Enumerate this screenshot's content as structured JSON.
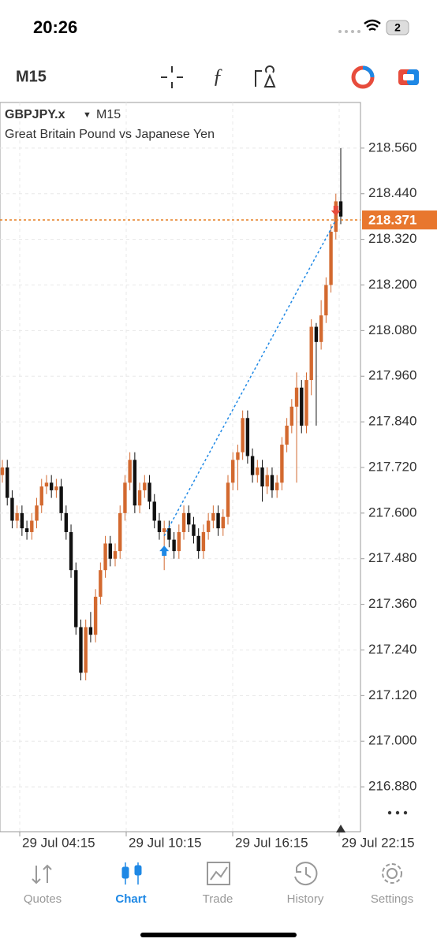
{
  "status_bar": {
    "time": "20:26",
    "battery": "2"
  },
  "toolbar": {
    "timeframe": "M15"
  },
  "chart_data": {
    "type": "candlestick",
    "symbol": "GBPJPY.x",
    "timeframe": "M15",
    "subtitle": "Great Britain Pound vs Japanese Yen",
    "up_color": "#d3692f",
    "down_color": "#111111",
    "open": [
      217.7,
      217.72,
      217.64,
      217.58,
      217.6,
      217.56,
      217.55,
      217.58,
      217.62,
      217.67,
      217.68,
      217.66,
      217.67,
      217.6,
      217.55,
      217.45,
      217.3,
      217.18,
      217.3,
      217.28,
      217.38,
      217.45,
      217.52,
      217.48,
      217.5,
      217.6,
      217.68,
      217.74,
      217.62,
      217.66,
      217.68,
      217.63,
      217.58,
      217.55,
      217.56,
      217.53,
      217.5,
      217.55,
      217.6,
      217.57,
      217.54,
      217.5,
      217.55,
      217.58,
      217.6,
      217.56,
      217.59,
      217.68,
      217.74,
      217.76,
      217.85,
      217.75,
      217.7,
      217.72,
      217.67,
      217.7,
      217.66,
      217.68,
      217.78,
      217.83,
      217.88,
      217.93,
      217.83,
      217.95,
      218.09,
      218.05,
      218.12,
      218.2,
      218.34,
      218.42
    ],
    "high": [
      217.74,
      217.74,
      217.66,
      217.62,
      217.62,
      217.58,
      217.6,
      217.64,
      217.69,
      217.7,
      217.7,
      217.69,
      217.69,
      217.62,
      217.57,
      217.47,
      217.32,
      217.32,
      217.34,
      217.4,
      217.47,
      217.54,
      217.54,
      217.52,
      217.62,
      217.7,
      217.76,
      217.76,
      217.68,
      217.7,
      217.7,
      217.65,
      217.6,
      217.58,
      217.58,
      217.55,
      217.57,
      217.62,
      217.62,
      217.59,
      217.56,
      217.57,
      217.6,
      217.62,
      217.62,
      217.61,
      217.7,
      217.76,
      217.78,
      217.87,
      217.87,
      217.77,
      217.74,
      217.74,
      217.72,
      217.72,
      217.7,
      217.8,
      217.85,
      217.9,
      217.97,
      217.95,
      217.97,
      218.11,
      218.1,
      218.16,
      218.22,
      218.36,
      218.44,
      218.56
    ],
    "low": [
      217.68,
      217.62,
      217.56,
      217.56,
      217.54,
      217.53,
      217.53,
      217.56,
      217.6,
      217.65,
      217.64,
      217.64,
      217.58,
      217.53,
      217.43,
      217.28,
      217.16,
      217.16,
      217.26,
      217.26,
      217.36,
      217.43,
      217.46,
      217.46,
      217.48,
      217.58,
      217.66,
      217.6,
      217.6,
      217.64,
      217.61,
      217.56,
      217.53,
      217.45,
      217.51,
      217.48,
      217.48,
      217.53,
      217.55,
      217.52,
      217.48,
      217.48,
      217.53,
      217.56,
      217.54,
      217.54,
      217.57,
      217.66,
      217.66,
      217.74,
      217.73,
      217.68,
      217.68,
      217.63,
      217.65,
      217.64,
      217.64,
      217.66,
      217.76,
      217.81,
      217.68,
      217.81,
      217.81,
      217.91,
      217.83,
      218.03,
      218.1,
      218.18,
      218.32,
      218.36
    ],
    "close": [
      217.72,
      217.64,
      217.58,
      217.6,
      217.56,
      217.55,
      217.58,
      217.62,
      217.67,
      217.68,
      217.66,
      217.67,
      217.6,
      217.55,
      217.45,
      217.3,
      217.18,
      217.3,
      217.28,
      217.38,
      217.45,
      217.52,
      217.48,
      217.5,
      217.6,
      217.68,
      217.74,
      217.62,
      217.66,
      217.68,
      217.63,
      217.58,
      217.55,
      217.56,
      217.53,
      217.5,
      217.55,
      217.6,
      217.57,
      217.54,
      217.5,
      217.55,
      217.58,
      217.6,
      217.56,
      217.59,
      217.68,
      217.74,
      217.76,
      217.85,
      217.75,
      217.7,
      217.72,
      217.67,
      217.7,
      217.66,
      217.68,
      217.78,
      217.83,
      217.88,
      217.93,
      217.83,
      217.95,
      218.09,
      218.05,
      218.12,
      218.2,
      218.34,
      218.42,
      218.38
    ],
    "ylim": [
      216.762,
      218.68
    ],
    "yticks": [
      {
        "value": 218.56,
        "label": "218.560"
      },
      {
        "value": 218.44,
        "label": "218.440"
      },
      {
        "value": 218.32,
        "label": "218.320"
      },
      {
        "value": 218.2,
        "label": "218.200"
      },
      {
        "value": 218.08,
        "label": "218.080"
      },
      {
        "value": 217.96,
        "label": "217.960"
      },
      {
        "value": 217.84,
        "label": "217.840"
      },
      {
        "value": 217.72,
        "label": "217.720"
      },
      {
        "value": 217.6,
        "label": "217.600"
      },
      {
        "value": 217.48,
        "label": "217.480"
      },
      {
        "value": 217.36,
        "label": "217.360"
      },
      {
        "value": 217.24,
        "label": "217.240"
      },
      {
        "value": 217.12,
        "label": "217.120"
      },
      {
        "value": 217,
        "label": "217.000"
      },
      {
        "value": 216.88,
        "label": "216.880"
      }
    ],
    "current_price": {
      "value": 218.371,
      "label": "218.371"
    },
    "xtick_labels": [
      "29 Jul 04:15",
      "29 Jul 10:15",
      "29 Jul 16:15",
      "29 Jul 22:15"
    ],
    "grid": true
  },
  "nav": {
    "items": [
      "Quotes",
      "Chart",
      "Trade",
      "History",
      "Settings"
    ],
    "active": "Chart"
  }
}
